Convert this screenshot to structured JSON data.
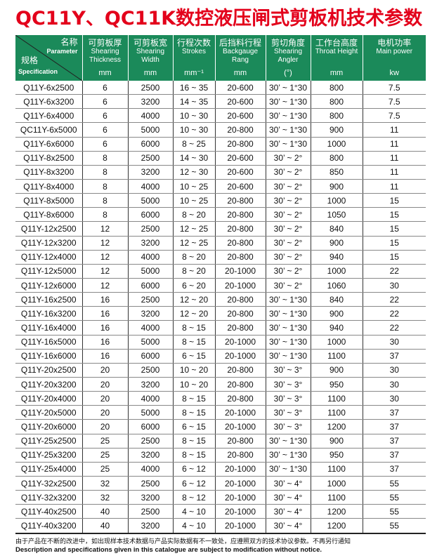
{
  "title": "QC11Y、QC11K数控液压闸式剪板机技术参数",
  "header": {
    "corner": {
      "param_cn": "名称",
      "param_en": "Parameter",
      "spec_cn": "规格",
      "spec_en": "Specification"
    },
    "columns": [
      {
        "cn": "可剪板厚",
        "en": "Shearing Thickness",
        "unit": "mm"
      },
      {
        "cn": "可剪板宽",
        "en": "Shearing Width",
        "unit": "mm"
      },
      {
        "cn": "行程次数",
        "en": "Strokes",
        "unit": "mm⁻¹"
      },
      {
        "cn": "后挡料行程",
        "en": "Backgauge Rang",
        "unit": "mm"
      },
      {
        "cn": "剪切角度",
        "en": "Shearing Angler",
        "unit": "(°)"
      },
      {
        "cn": "工作台高度",
        "en": "Throat Height",
        "unit": "mm"
      },
      {
        "cn": "电机功率",
        "en": "Main power",
        "unit": "kw"
      }
    ]
  },
  "rows": [
    [
      "Q11Y-6x2500",
      "6",
      "2500",
      "16 ~ 35",
      "20-600",
      "30’ ~ 1°30",
      "800",
      "7.5"
    ],
    [
      "Q11Y-6x3200",
      "6",
      "3200",
      "14 ~ 35",
      "20-600",
      "30’ ~ 1°30",
      "800",
      "7.5"
    ],
    [
      "Q11Y-6x4000",
      "6",
      "4000",
      "10 ~ 30",
      "20-600",
      "30’ ~ 1°30",
      "800",
      "7.5"
    ],
    [
      "QC11Y-6x5000",
      "6",
      "5000",
      "10 ~ 30",
      "20-800",
      "30’ ~ 1°30",
      "900",
      "11"
    ],
    [
      "Q11Y-6x6000",
      "6",
      "6000",
      "8 ~ 25",
      "20-800",
      "30’ ~ 1°30",
      "1000",
      "11"
    ],
    [
      "Q11Y-8x2500",
      "8",
      "2500",
      "14 ~ 30",
      "20-600",
      "30’ ~ 2°",
      "800",
      "11"
    ],
    [
      "Q11Y-8x3200",
      "8",
      "3200",
      "12 ~ 30",
      "20-600",
      "30’ ~ 2°",
      "850",
      "11"
    ],
    [
      "Q11Y-8x4000",
      "8",
      "4000",
      "10 ~ 25",
      "20-600",
      "30’ ~ 2°",
      "900",
      "11"
    ],
    [
      "Q11Y-8x5000",
      "8",
      "5000",
      "10 ~ 25",
      "20-800",
      "30’ ~ 2°",
      "1000",
      "15"
    ],
    [
      "Q11Y-8x6000",
      "8",
      "6000",
      "8 ~ 20",
      "20-800",
      "30’ ~ 2°",
      "1050",
      "15"
    ],
    [
      "Q11Y-12x2500",
      "12",
      "2500",
      "12 ~ 25",
      "20-800",
      "30’ ~ 2°",
      "840",
      "15"
    ],
    [
      "Q11Y-12x3200",
      "12",
      "3200",
      "12 ~ 25",
      "20-800",
      "30’ ~ 2°",
      "900",
      "15"
    ],
    [
      "Q11Y-12x4000",
      "12",
      "4000",
      "8 ~ 20",
      "20-800",
      "30’ ~ 2°",
      "940",
      "15"
    ],
    [
      "Q11Y-12x5000",
      "12",
      "5000",
      "8 ~ 20",
      "20-1000",
      "30’ ~ 2°",
      "1000",
      "22"
    ],
    [
      "Q11Y-12x6000",
      "12",
      "6000",
      "6 ~ 20",
      "20-1000",
      "30’ ~ 2°",
      "1060",
      "30"
    ],
    [
      "Q11Y-16x2500",
      "16",
      "2500",
      "12 ~ 20",
      "20-800",
      "30’ ~ 1°30",
      "840",
      "22"
    ],
    [
      "Q11Y-16x3200",
      "16",
      "3200",
      "12 ~ 20",
      "20-800",
      "30’ ~ 1°30",
      "900",
      "22"
    ],
    [
      "Q11Y-16x4000",
      "16",
      "4000",
      "8 ~ 15",
      "20-800",
      "30’ ~ 1°30",
      "940",
      "22"
    ],
    [
      "Q11Y-16x5000",
      "16",
      "5000",
      "8 ~ 15",
      "20-1000",
      "30’ ~ 1°30",
      "1000",
      "30"
    ],
    [
      "Q11Y-16x6000",
      "16",
      "6000",
      "6 ~ 15",
      "20-1000",
      "30’ ~ 1°30",
      "1100",
      "37"
    ],
    [
      "Q11Y-20x2500",
      "20",
      "2500",
      "10 ~ 20",
      "20-800",
      "30’ ~ 3°",
      "900",
      "30"
    ],
    [
      "Q11Y-20x3200",
      "20",
      "3200",
      "10 ~ 20",
      "20-800",
      "30’ ~ 3°",
      "950",
      "30"
    ],
    [
      "Q11Y-20x4000",
      "20",
      "4000",
      "8 ~ 15",
      "20-800",
      "30’ ~ 3°",
      "1100",
      "30"
    ],
    [
      "Q11Y-20x5000",
      "20",
      "5000",
      "8 ~ 15",
      "20-1000",
      "30’ ~ 3°",
      "1100",
      "37"
    ],
    [
      "Q11Y-20x6000",
      "20",
      "6000",
      "6 ~ 15",
      "20-1000",
      "30’ ~ 3°",
      "1200",
      "37"
    ],
    [
      "Q11Y-25x2500",
      "25",
      "2500",
      "8 ~ 15",
      "20-800",
      "30’ ~ 1°30",
      "900",
      "37"
    ],
    [
      "Q11Y-25x3200",
      "25",
      "3200",
      "8 ~ 15",
      "20-800",
      "30’ ~ 1°30",
      "950",
      "37"
    ],
    [
      "Q11Y-25x4000",
      "25",
      "4000",
      "6 ~ 12",
      "20-1000",
      "30’ ~ 1°30",
      "1100",
      "37"
    ],
    [
      "Q11Y-32x2500",
      "32",
      "2500",
      "6 ~ 12",
      "20-1000",
      "30’ ~ 4°",
      "1000",
      "55"
    ],
    [
      "Q11Y-32x3200",
      "32",
      "3200",
      "8 ~ 12",
      "20-1000",
      "30’ ~ 4°",
      "1100",
      "55"
    ],
    [
      "Q11Y-40x2500",
      "40",
      "2500",
      "4 ~ 10",
      "20-1000",
      "30’ ~ 4°",
      "1200",
      "55"
    ],
    [
      "Q11Y-40x3200",
      "40",
      "3200",
      "4 ~ 10",
      "20-1000",
      "30’ ~ 4°",
      "1200",
      "55"
    ]
  ],
  "note_cn": "由于产品在不断的改进中，如出现样本技术数据与产品实际数据有不一致处，应遵照双方的技术协议参数。不再另行通知",
  "note_en": "Description and specifications given in this catalogue are subject to modification without notice.",
  "colors": {
    "title": "#e3001b",
    "header_bg": "#1b8a5a"
  }
}
